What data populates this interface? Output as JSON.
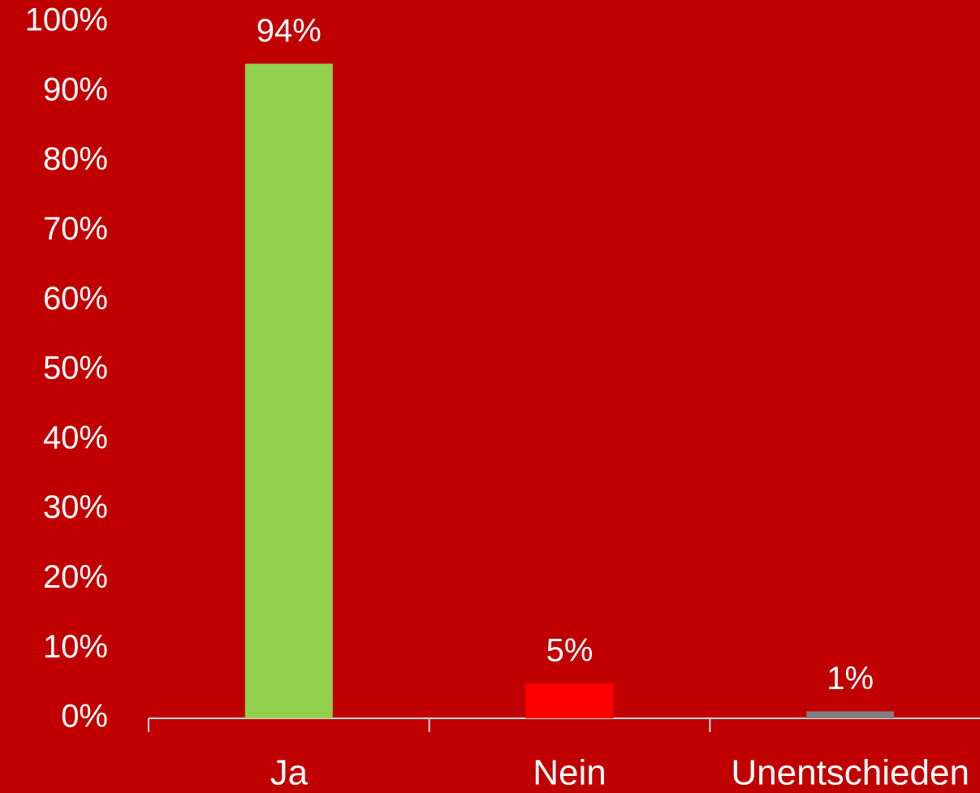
{
  "chart_data": {
    "type": "bar",
    "categories": [
      "Ja",
      "Nein",
      "Unentschieden"
    ],
    "values": [
      94,
      5,
      1
    ],
    "value_labels": [
      "94%",
      "5%",
      "1%"
    ],
    "colors": [
      "#92d050",
      "#ff0000",
      "#808080"
    ],
    "ylim": [
      0,
      100
    ],
    "yticks": [
      {
        "value": 0,
        "label": "0%"
      },
      {
        "value": 10,
        "label": "10%"
      },
      {
        "value": 20,
        "label": "20%"
      },
      {
        "value": 30,
        "label": "30%"
      },
      {
        "value": 40,
        "label": "40%"
      },
      {
        "value": 50,
        "label": "50%"
      },
      {
        "value": 60,
        "label": "60%"
      },
      {
        "value": 70,
        "label": "70%"
      },
      {
        "value": 80,
        "label": "80%"
      },
      {
        "value": 90,
        "label": "90%"
      },
      {
        "value": 100,
        "label": "100%"
      }
    ],
    "grid": false
  }
}
